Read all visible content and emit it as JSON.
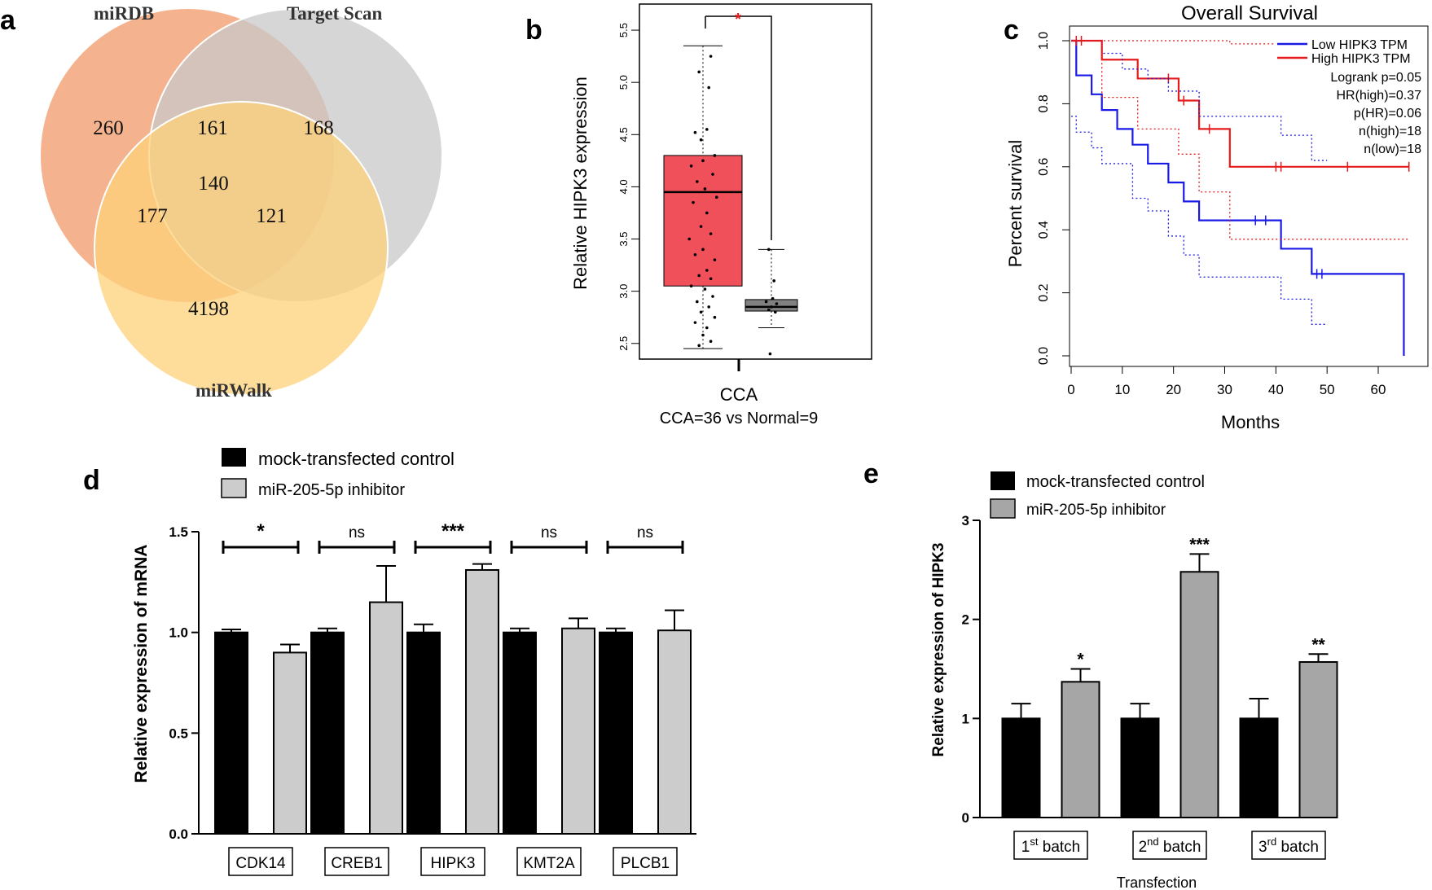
{
  "panel_labels": {
    "a": "a",
    "b": "b",
    "c": "c",
    "d": "d",
    "e": "e"
  },
  "colors": {
    "mirdb": "#f2a67a",
    "targetscan": "#c8c8c8",
    "mirwalk": "#fdd27a",
    "cca_box": "#f0505a",
    "normal_box": "#808080",
    "low_line": "#1a1ae6",
    "high_line": "#e61a1a",
    "black_bar": "#000000",
    "grey_bar_d": "#cccccc",
    "grey_bar_e": "#a6a6a6"
  },
  "chart_data": [
    {
      "type": "venn",
      "sets": [
        "miRDB",
        "Target Scan",
        "miRWalk"
      ],
      "regions": {
        "miRDB_only": "260",
        "miRDB_TargetScan": "161",
        "TargetScan_only": "168",
        "all_three": "140",
        "miRDB_miRWalk": "177",
        "TargetScan_miRWalk": "121",
        "miRWalk_only": "4198"
      }
    },
    {
      "type": "box",
      "ylabel": "Relative HIPK3 expression",
      "xlabel": "CCA",
      "subtitle": "CCA=36 vs Normal=9",
      "significance": "*",
      "ylim": [
        2.35,
        5.75
      ],
      "yticks": [
        2.5,
        3.0,
        3.5,
        4.0,
        4.5,
        5.0,
        5.5
      ],
      "ytick_labels": [
        "2.5",
        "3.0",
        "3.5",
        "4.0",
        "4.5",
        "5.0",
        "5.5"
      ],
      "boxes": [
        {
          "name": "CCA",
          "whisker_low": 2.45,
          "q1": 3.05,
          "median": 3.95,
          "q3": 4.3,
          "whisker_high": 5.35,
          "points": [
            [
              0.2,
              5.25
            ],
            [
              -0.1,
              5.1
            ],
            [
              0.15,
              4.95
            ],
            [
              -0.2,
              4.52
            ],
            [
              0.1,
              4.55
            ],
            [
              -0.05,
              4.45
            ],
            [
              0.3,
              4.3
            ],
            [
              0.0,
              4.25
            ],
            [
              -0.3,
              4.2
            ],
            [
              0.25,
              4.12
            ],
            [
              -0.15,
              4.05
            ],
            [
              0.05,
              3.98
            ],
            [
              0.35,
              3.9
            ],
            [
              -0.25,
              3.85
            ],
            [
              0.1,
              3.75
            ],
            [
              -0.05,
              3.62
            ],
            [
              0.2,
              3.55
            ],
            [
              -0.35,
              3.5
            ],
            [
              0.0,
              3.4
            ],
            [
              -0.2,
              3.35
            ],
            [
              0.3,
              3.3
            ],
            [
              0.1,
              3.2
            ],
            [
              -0.1,
              3.15
            ],
            [
              0.2,
              3.12
            ],
            [
              -0.3,
              3.05
            ],
            [
              0.05,
              3.02
            ],
            [
              0.25,
              2.95
            ],
            [
              -0.15,
              2.9
            ],
            [
              0.15,
              2.85
            ],
            [
              -0.05,
              2.8
            ],
            [
              0.3,
              2.75
            ],
            [
              -0.2,
              2.7
            ],
            [
              0.1,
              2.65
            ],
            [
              0.0,
              2.58
            ],
            [
              0.2,
              2.52
            ],
            [
              -0.1,
              2.48
            ]
          ]
        },
        {
          "name": "Normal",
          "whisker_low": 2.65,
          "q1": 2.81,
          "median": 2.85,
          "q3": 2.92,
          "whisker_high": 3.4,
          "points": [
            [
              -0.1,
              3.4
            ],
            [
              0.1,
              3.1
            ],
            [
              0.05,
              2.93
            ],
            [
              -0.2,
              2.9
            ],
            [
              0.2,
              2.88
            ],
            [
              0.0,
              2.85
            ],
            [
              -0.1,
              2.82
            ],
            [
              0.15,
              2.8
            ],
            [
              -0.05,
              2.4
            ]
          ]
        }
      ]
    },
    {
      "type": "line",
      "title": "Overall Survival",
      "xlabel": "Months",
      "ylabel": "Percent survival",
      "xlim": [
        0,
        67
      ],
      "ylim": [
        0,
        1.0
      ],
      "xticks": [
        0,
        10,
        20,
        30,
        40,
        50,
        60
      ],
      "xtick_labels": [
        "0",
        "10",
        "20",
        "30",
        "40",
        "50",
        "60"
      ],
      "yticks": [
        0.0,
        0.2,
        0.4,
        0.6,
        0.8,
        1.0
      ],
      "ytick_labels": [
        "0.0",
        "0.2",
        "0.4",
        "0.6",
        "0.8",
        "1.0"
      ],
      "legend": [
        "Low HIPK3 TPM",
        "High HIPK3 TPM"
      ],
      "stats": [
        "Logrank p=0.05",
        "HR(high)=0.37",
        "p(HR)=0.06",
        "n(high)=18",
        "n(low)=18"
      ],
      "series": [
        {
          "name": "Low HIPK3 TPM",
          "style": "solid",
          "color": "#1a1ae6",
          "steps": [
            [
              0,
              1.0
            ],
            [
              1,
              0.89
            ],
            [
              4,
              0.83
            ],
            [
              6,
              0.78
            ],
            [
              9,
              0.72
            ],
            [
              12,
              0.67
            ],
            [
              15,
              0.61
            ],
            [
              19,
              0.55
            ],
            [
              22,
              0.49
            ],
            [
              25,
              0.43
            ],
            [
              41,
              0.34
            ],
            [
              47,
              0.26
            ],
            [
              65,
              0.26
            ],
            [
              65,
              0.0
            ]
          ],
          "censors": [
            [
              36,
              0.43
            ],
            [
              38,
              0.43
            ],
            [
              48,
              0.26
            ],
            [
              49,
              0.26
            ]
          ]
        },
        {
          "name": "High HIPK3 TPM",
          "style": "solid",
          "color": "#e61a1a",
          "steps": [
            [
              0,
              1.0
            ],
            [
              6,
              0.94
            ],
            [
              13,
              0.88
            ],
            [
              21,
              0.81
            ],
            [
              25,
              0.72
            ],
            [
              31,
              0.6
            ],
            [
              66,
              0.6
            ]
          ],
          "censors": [
            [
              1,
              1.0
            ],
            [
              2,
              1.0
            ],
            [
              19,
              0.88
            ],
            [
              22,
              0.81
            ],
            [
              27,
              0.72
            ],
            [
              40,
              0.6
            ],
            [
              41,
              0.6
            ],
            [
              54,
              0.6
            ],
            [
              66,
              0.6
            ]
          ]
        },
        {
          "name": "Low CI upper",
          "style": "dotted",
          "color": "#1a1ae6",
          "steps": [
            [
              0,
              1.0
            ],
            [
              6,
              0.96
            ],
            [
              10,
              0.91
            ],
            [
              15,
              0.88
            ],
            [
              19,
              0.84
            ],
            [
              25,
              0.76
            ],
            [
              41,
              0.7
            ],
            [
              47,
              0.62
            ],
            [
              50,
              0.62
            ]
          ]
        },
        {
          "name": "Low CI lower",
          "style": "dotted",
          "color": "#1a1ae6",
          "steps": [
            [
              0,
              0.76
            ],
            [
              1,
              0.71
            ],
            [
              4,
              0.66
            ],
            [
              6,
              0.61
            ],
            [
              12,
              0.5
            ],
            [
              15,
              0.46
            ],
            [
              19,
              0.38
            ],
            [
              22,
              0.32
            ],
            [
              25,
              0.25
            ],
            [
              41,
              0.18
            ],
            [
              47,
              0.1
            ],
            [
              50,
              0.1
            ]
          ]
        },
        {
          "name": "High CI upper",
          "style": "dotted",
          "color": "#e61a1a",
          "steps": [
            [
              0,
              1.0
            ],
            [
              31,
              0.99
            ],
            [
              66,
              0.99
            ]
          ]
        },
        {
          "name": "High CI lower",
          "style": "dotted",
          "color": "#e61a1a",
          "steps": [
            [
              0,
              1.0
            ],
            [
              6,
              0.82
            ],
            [
              13,
              0.72
            ],
            [
              21,
              0.64
            ],
            [
              25,
              0.52
            ],
            [
              31,
              0.37
            ],
            [
              66,
              0.37
            ]
          ]
        }
      ]
    },
    {
      "type": "bar",
      "ylabel": "Relative expression of mRNA",
      "categories": [
        "CDK14",
        "CREB1",
        "HIPK3",
        "KMT2A",
        "PLCB1"
      ],
      "ylim": [
        0,
        1.5
      ],
      "yticks": [
        0.0,
        0.5,
        1.0,
        1.5
      ],
      "ytick_labels": [
        "0.0",
        "0.5",
        "1.0",
        "1.5"
      ],
      "legend": [
        "mock-transfected control",
        "miR-205-5p inhibitor"
      ],
      "significance": [
        "*",
        "ns",
        "***",
        "ns",
        "ns"
      ],
      "series": [
        {
          "name": "mock-transfected control",
          "values": [
            1.0,
            1.0,
            1.0,
            1.0,
            1.0
          ],
          "errors": [
            0.015,
            0.02,
            0.04,
            0.02,
            0.02
          ]
        },
        {
          "name": "miR-205-5p inhibitor",
          "values": [
            0.9,
            1.15,
            1.31,
            1.02,
            1.01
          ],
          "errors": [
            0.04,
            0.18,
            0.03,
            0.05,
            0.1
          ]
        }
      ]
    },
    {
      "type": "bar",
      "ylabel": "Relative expression of HIPK3",
      "xlabel": "Transfection",
      "categories": [
        "1",
        "2",
        "3"
      ],
      "category_suffixes": [
        "st",
        "nd",
        "rd"
      ],
      "category_word": " batch",
      "ylim": [
        0,
        3
      ],
      "yticks": [
        0,
        1,
        2,
        3
      ],
      "ytick_labels": [
        "0",
        "1",
        "2",
        "3"
      ],
      "legend": [
        "mock-transfected control",
        "miR-205-5p inhibitor"
      ],
      "significance": [
        "*",
        "***",
        "**"
      ],
      "series": [
        {
          "name": "mock-transfected control",
          "values": [
            1.0,
            1.0,
            1.0
          ],
          "errors": [
            0.15,
            0.15,
            0.2
          ]
        },
        {
          "name": "miR-205-5p inhibitor",
          "values": [
            1.37,
            2.48,
            1.57
          ],
          "errors": [
            0.13,
            0.18,
            0.08
          ]
        }
      ]
    }
  ]
}
